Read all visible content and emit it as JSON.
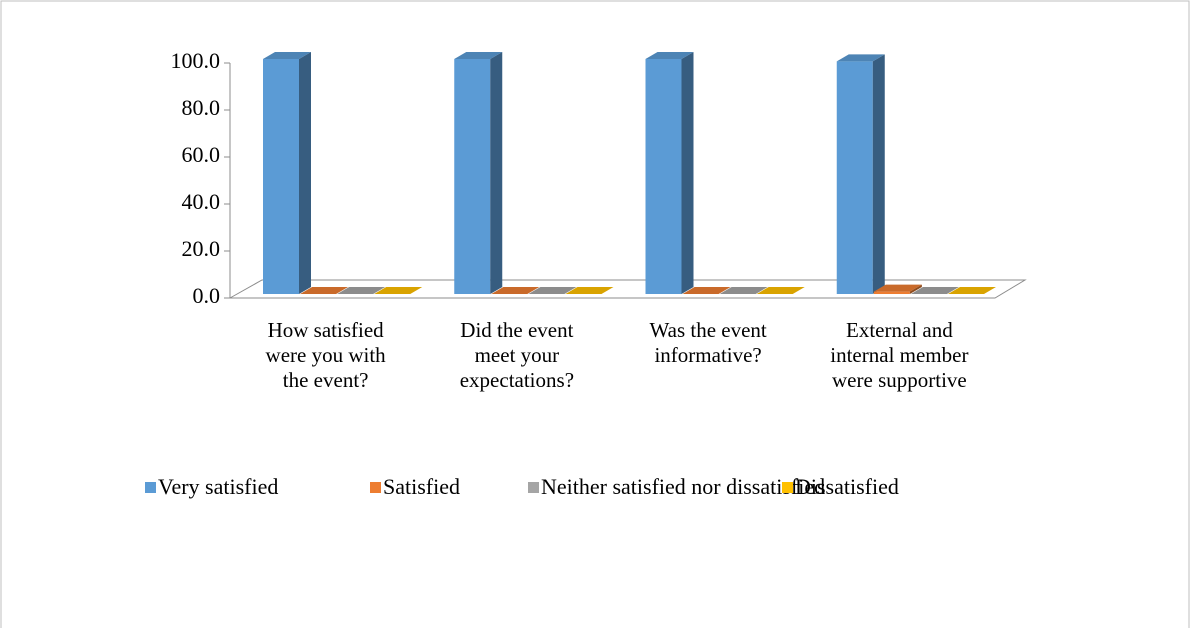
{
  "chart_data": {
    "type": "bar3d",
    "categories": [
      "How satisfied were you with the event?",
      "Did the event meet your expectations?",
      "Was the event informative?",
      "External and internal member were supportive"
    ],
    "series": [
      {
        "name": "Very satisfied",
        "color": "#5b9bd5",
        "values": [
          100,
          100,
          100,
          99
        ]
      },
      {
        "name": "Satisfied",
        "color": "#ed7d31",
        "values": [
          0,
          0,
          0,
          1
        ]
      },
      {
        "name": "Neither satisfied nor dissatisfied",
        "color": "#a5a5a5",
        "values": [
          0,
          0,
          0,
          0
        ]
      },
      {
        "name": "Dissatisfied",
        "color": "#ffc000",
        "values": [
          0,
          0,
          0,
          0
        ]
      }
    ],
    "ylim": [
      0,
      100
    ],
    "yticks": [
      {
        "value": 0,
        "label": "0.0"
      },
      {
        "value": 20,
        "label": "20.0"
      },
      {
        "value": 40,
        "label": "40.0"
      },
      {
        "value": 60,
        "label": "60.0"
      },
      {
        "value": 80,
        "label": "80.0"
      },
      {
        "value": 100,
        "label": "100.0"
      }
    ],
    "legend": "bottom"
  }
}
